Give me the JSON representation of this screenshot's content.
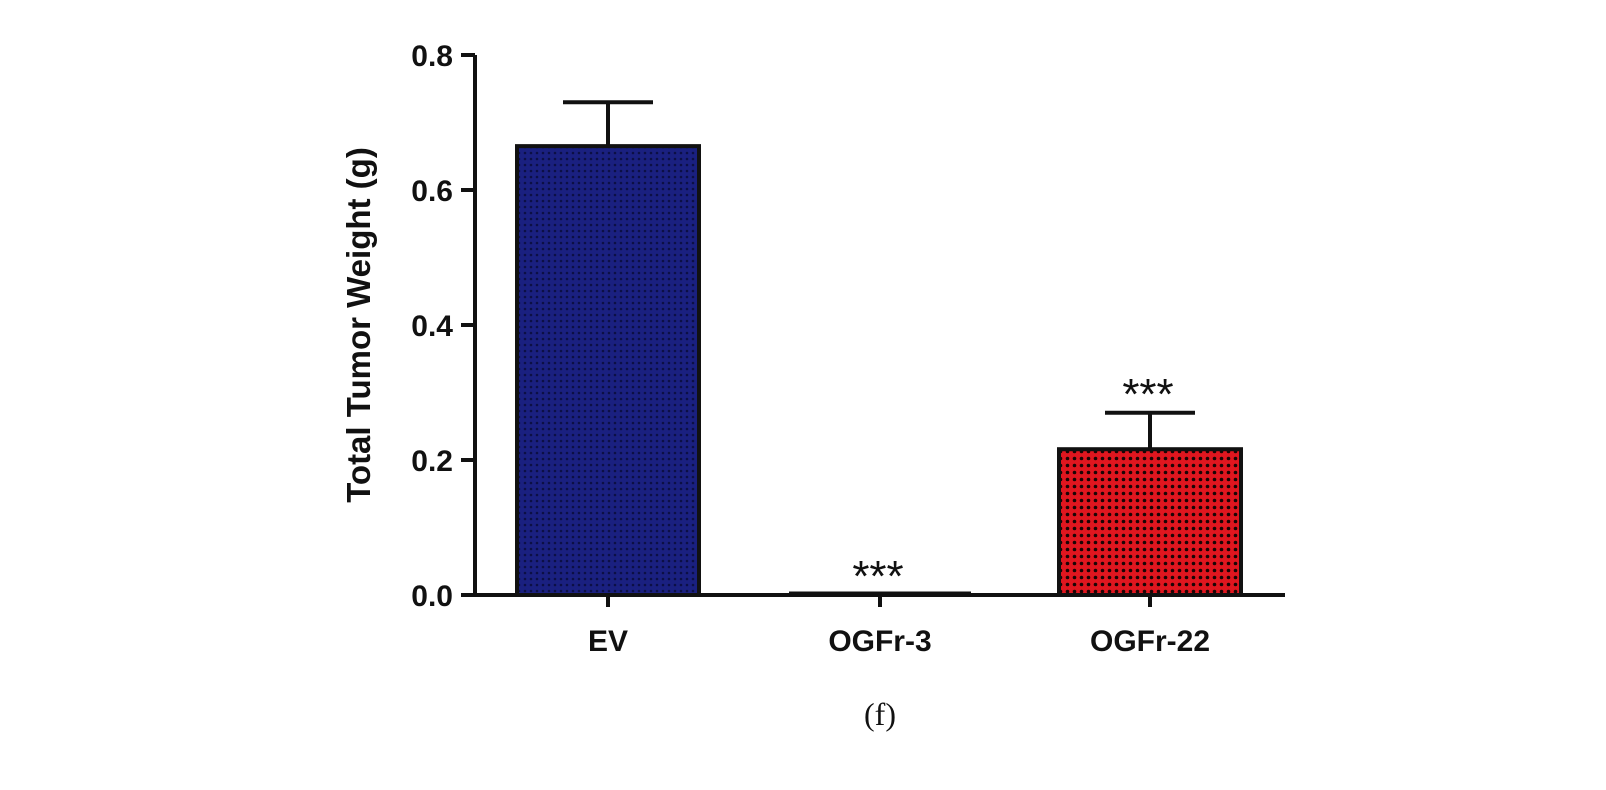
{
  "chart_data": {
    "type": "bar",
    "title": "",
    "xlabel": "",
    "ylabel": "Total Tumor Weight (g)",
    "ylim": [
      0,
      0.8
    ],
    "yticks": [
      "0.0",
      "0.2",
      "0.4",
      "0.6",
      "0.8"
    ],
    "categories": [
      "EV",
      "OGFr-3",
      "OGFr-22"
    ],
    "values": [
      0.665,
      0.0,
      0.216
    ],
    "errors": [
      0.065,
      0.0,
      0.054
    ],
    "annotations": [
      "",
      "***",
      "***"
    ],
    "colors": [
      "#141a6e",
      "#ffffff",
      "#d0141e"
    ],
    "grid": false,
    "legend": "none"
  },
  "caption": "(f)"
}
